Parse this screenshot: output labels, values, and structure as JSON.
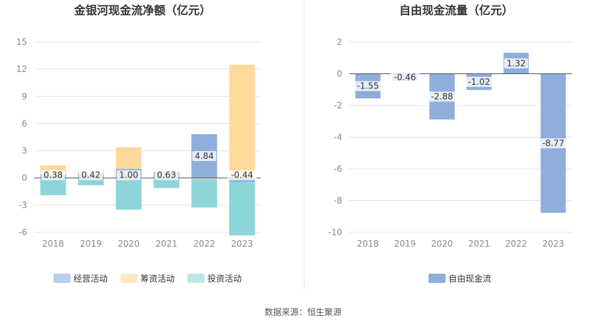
{
  "source_text": "数据来源：恒生聚源",
  "chart_data": [
    {
      "type": "bar",
      "stacked": true,
      "title": "金银河现金流净额（亿元）",
      "categories": [
        "2018",
        "2019",
        "2020",
        "2021",
        "2022",
        "2023"
      ],
      "ylim": [
        -6,
        15
      ],
      "yticks": [
        -6,
        -3,
        0,
        3,
        6,
        9,
        12,
        15
      ],
      "grid": true,
      "legend_position": "bottom",
      "series": [
        {
          "name": "经营活动",
          "color": "#8eaedc",
          "values": [
            0.38,
            0.42,
            1.0,
            0.63,
            4.84,
            -0.44
          ]
        },
        {
          "name": "筹资活动",
          "color": "#fdd99b",
          "values": [
            1.0,
            0.35,
            2.4,
            0.1,
            -0.15,
            12.5
          ]
        },
        {
          "name": "投资活动",
          "color": "#8dd5d9",
          "values": [
            -1.9,
            -0.8,
            -3.5,
            -1.1,
            -3.1,
            -5.9
          ]
        }
      ],
      "data_labels": [
        "0.38",
        "0.42",
        "1.00",
        "0.63",
        "4.84",
        "-0.44"
      ]
    },
    {
      "type": "bar",
      "title": "自由现金流量（亿元）",
      "categories": [
        "2018",
        "2019",
        "2020",
        "2021",
        "2022",
        "2023"
      ],
      "ylim": [
        -10,
        2
      ],
      "yticks": [
        -10,
        -8,
        -6,
        -4,
        -2,
        0,
        2
      ],
      "grid": true,
      "legend_position": "bottom",
      "series": [
        {
          "name": "自由现金流",
          "color": "#8eaedc",
          "values": [
            -1.55,
            -0.46,
            -2.88,
            -1.02,
            1.32,
            -8.77
          ]
        }
      ],
      "data_labels": [
        "-1.55",
        "-0.46",
        "-2.88",
        "-1.02",
        "1.32",
        "-8.77"
      ]
    }
  ]
}
